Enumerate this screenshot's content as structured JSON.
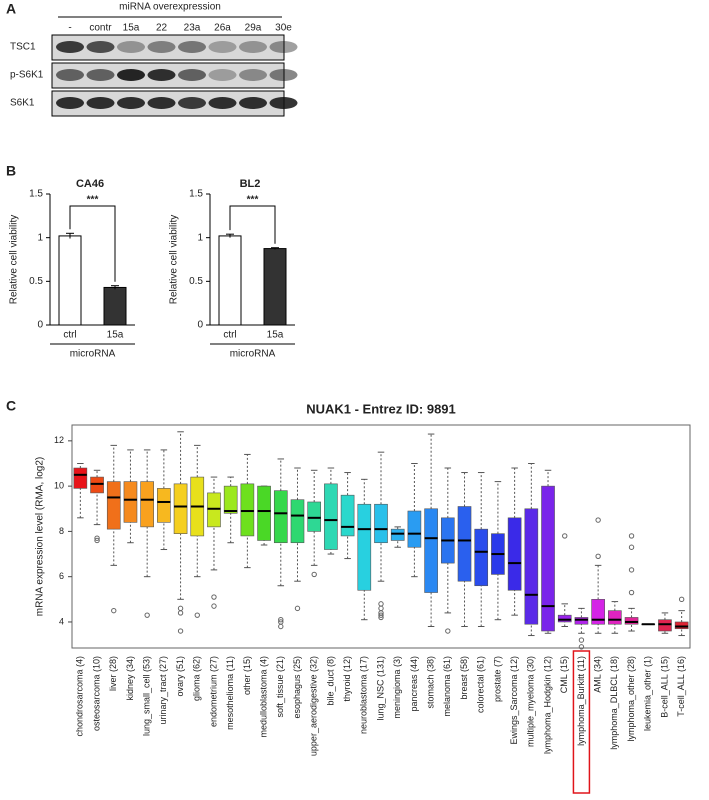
{
  "panel_labels": [
    "A",
    "B",
    "C"
  ],
  "blot": {
    "header": "miRNA overexpression",
    "lanes": [
      "-",
      "contr",
      "15a",
      "22",
      "23a",
      "26a",
      "29a",
      "30e"
    ],
    "rows": [
      "TSC1",
      "p-S6K1",
      "S6K1"
    ]
  },
  "chart_data": [
    {
      "type": "bar",
      "title": "CA46",
      "y_label": "Relative cell viability",
      "x_label": "microRNA",
      "categories": [
        "ctrl",
        "15a"
      ],
      "values": [
        1.02,
        0.43
      ],
      "errors": [
        0.03,
        0.02
      ],
      "colors": [
        "#ffffff",
        "#333333"
      ],
      "ylim": [
        0,
        1.5
      ],
      "yticks": [
        0,
        0.5,
        1,
        1.5
      ],
      "significance": "***"
    },
    {
      "type": "bar",
      "title": "BL2",
      "y_label": "Relative cell viability",
      "x_label": "microRNA",
      "categories": [
        "ctrl",
        "15a"
      ],
      "values": [
        1.02,
        0.875
      ],
      "errors": [
        0.02,
        0.01
      ],
      "colors": [
        "#ffffff",
        "#333333"
      ],
      "ylim": [
        0,
        1.5
      ],
      "yticks": [
        0,
        0.5,
        1,
        1.5
      ],
      "significance": "***"
    },
    {
      "type": "box",
      "title": "NUAK1  -  Entrez ID: 9891",
      "y_label": "mRNA expression level (RMA, log2)",
      "ylim": [
        2.85,
        12.7
      ],
      "yticks": [
        4,
        6,
        8,
        10,
        12
      ],
      "highlight_index": 30,
      "categories": [
        "chondrosarcoma (4)",
        "osteosarcoma (10)",
        "liver (28)",
        "kidney (34)",
        "lung_small_cell (53)",
        "urinary_tract (27)",
        "ovary (51)",
        "glioma (62)",
        "endometrium (27)",
        "mesothelioma (11)",
        "other (15)",
        "medulloblastoma (4)",
        "soft_tissue (21)",
        "esophagus (25)",
        "upper_aerodigestive (32)",
        "bile_duct (8)",
        "thyroid (12)",
        "neuroblastoma (17)",
        "lung_NSC (131)",
        "meningioma (3)",
        "pancreas (44)",
        "stomach (38)",
        "melanoma (61)",
        "breast (58)",
        "colorectal (61)",
        "prostate (7)",
        "Ewings_Sarcoma (12)",
        "multiple_myeloma (30)",
        "lymphoma_Hodgkin (12)",
        "CML (15)",
        "lymphoma_Burkitt (11)",
        "AML (34)",
        "lymphoma_DLBCL (18)",
        "lymphoma_other (28)",
        "leukemia_other (1)",
        "B-cell_ALL (15)",
        "T-cell_ALL (16)"
      ],
      "values": [
        [
          8.6,
          9.9,
          10.5,
          10.8,
          11.0
        ],
        [
          8.3,
          9.7,
          10.1,
          10.4,
          10.7
        ],
        [
          6.5,
          8.1,
          9.5,
          10.2,
          11.8
        ],
        [
          7.5,
          8.4,
          9.4,
          10.2,
          11.6
        ],
        [
          6.0,
          8.2,
          9.4,
          10.2,
          11.6
        ],
        [
          7.2,
          8.4,
          9.3,
          9.9,
          11.6
        ],
        [
          5.0,
          7.9,
          9.1,
          10.1,
          12.4
        ],
        [
          6.0,
          7.8,
          9.1,
          10.4,
          11.8
        ],
        [
          6.3,
          8.2,
          9.0,
          9.7,
          10.4
        ],
        [
          7.5,
          8.8,
          8.9,
          10.0,
          10.4
        ],
        [
          6.4,
          7.8,
          8.9,
          10.1,
          11.4
        ],
        [
          7.4,
          7.6,
          8.9,
          10.0,
          10.0
        ],
        [
          5.6,
          7.5,
          8.8,
          9.8,
          11.2
        ],
        [
          5.8,
          7.5,
          8.7,
          9.4,
          10.8
        ],
        [
          6.5,
          8.0,
          8.6,
          9.3,
          10.7
        ],
        [
          7.0,
          7.2,
          8.5,
          10.1,
          10.8
        ],
        [
          6.8,
          7.8,
          8.2,
          9.6,
          10.6
        ],
        [
          4.1,
          5.4,
          8.1,
          9.2,
          10.3
        ],
        [
          5.8,
          7.5,
          8.1,
          9.2,
          11.5
        ],
        [
          7.3,
          7.6,
          7.9,
          8.1,
          8.2
        ],
        [
          6.0,
          7.3,
          7.9,
          8.9,
          11.0
        ],
        [
          3.8,
          5.3,
          7.7,
          9.0,
          12.3
        ],
        [
          4.4,
          6.6,
          7.6,
          8.6,
          10.8
        ],
        [
          3.8,
          5.8,
          7.6,
          9.1,
          10.6
        ],
        [
          3.8,
          5.6,
          7.1,
          8.1,
          10.6
        ],
        [
          4.1,
          6.1,
          7.0,
          7.9,
          10.2
        ],
        [
          4.3,
          5.4,
          6.6,
          8.6,
          10.8
        ],
        [
          3.4,
          3.9,
          5.2,
          9.0,
          11.0
        ],
        [
          3.5,
          3.6,
          4.7,
          10.0,
          10.7
        ],
        [
          3.8,
          4.0,
          4.1,
          4.3,
          4.8
        ],
        [
          3.5,
          3.9,
          4.1,
          4.2,
          4.6
        ],
        [
          3.5,
          3.9,
          4.1,
          5.0,
          6.5
        ],
        [
          3.5,
          3.9,
          4.1,
          4.5,
          4.9
        ],
        [
          3.6,
          3.9,
          4.0,
          4.2,
          4.6
        ],
        [
          3.9,
          3.9,
          3.9,
          3.9,
          3.9
        ],
        [
          3.5,
          3.6,
          3.9,
          4.1,
          4.4
        ],
        [
          3.4,
          3.7,
          3.8,
          4.0,
          4.5
        ]
      ],
      "outliers": [
        [],
        [
          7.7,
          7.6
        ],
        [
          4.5
        ],
        [],
        [
          4.3
        ],
        [],
        [
          4.6,
          4.4,
          3.6
        ],
        [
          4.3
        ],
        [
          5.1,
          4.7
        ],
        [],
        [],
        [],
        [
          4.1,
          4.0,
          3.8
        ],
        [
          4.6
        ],
        [
          6.1
        ],
        [],
        [],
        [],
        [
          4.8,
          4.6,
          4.4,
          4.3,
          4.2
        ],
        [],
        [],
        [],
        [
          3.6
        ],
        [],
        [],
        [],
        [],
        [],
        [],
        [
          7.8
        ],
        [
          3.2,
          2.9
        ],
        [
          6.9,
          8.5
        ],
        [],
        [
          5.3,
          6.3,
          7.3,
          7.8
        ],
        [],
        [],
        [
          5.0
        ]
      ],
      "colors": [
        "#e8141a",
        "#ee4a14",
        "#f0701a",
        "#f58a1e",
        "#f9a11e",
        "#f7b81f",
        "#f5cf1f",
        "#e8e01c",
        "#c8e81e",
        "#9be81e",
        "#6ee01e",
        "#4ad826",
        "#36d84c",
        "#2ed870",
        "#2ed894",
        "#2ed8b4",
        "#2ad8cc",
        "#28d0e0",
        "#2ac0ea",
        "#2ab0f0",
        "#2a9cf2",
        "#2a88f2",
        "#2a74f0",
        "#2a60ee",
        "#2a4cec",
        "#2a3aea",
        "#3a2ae8",
        "#5a2ae8",
        "#7a24ea",
        "#9a24ec",
        "#b024ea",
        "#d424e6",
        "#e024c0",
        "#e02498",
        "#e02470",
        "#e02450",
        "#e02434"
      ]
    }
  ]
}
